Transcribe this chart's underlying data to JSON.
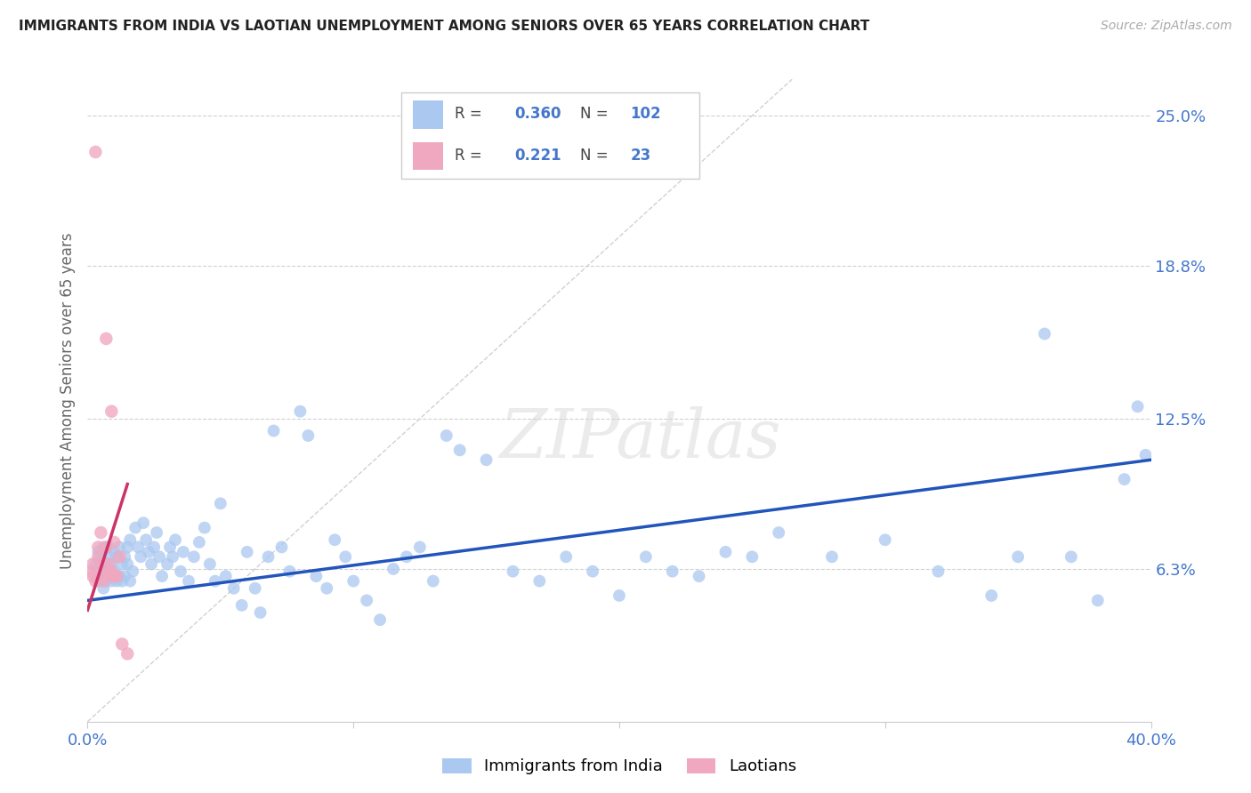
{
  "title": "IMMIGRANTS FROM INDIA VS LAOTIAN UNEMPLOYMENT AMONG SENIORS OVER 65 YEARS CORRELATION CHART",
  "source": "Source: ZipAtlas.com",
  "ylabel": "Unemployment Among Seniors over 65 years",
  "xlim": [
    0.0,
    0.4
  ],
  "ylim": [
    0.0,
    0.265
  ],
  "xticks": [
    0.0,
    0.1,
    0.2,
    0.3,
    0.4
  ],
  "xticklabels": [
    "0.0%",
    "",
    "",
    "",
    "40.0%"
  ],
  "ytick_positions": [
    0.0,
    0.063,
    0.125,
    0.188,
    0.25
  ],
  "ytick_labels": [
    "",
    "6.3%",
    "12.5%",
    "18.8%",
    "25.0%"
  ],
  "legend_r_india": "0.360",
  "legend_n_india": "102",
  "legend_r_laotian": "0.221",
  "legend_n_laotian": "23",
  "india_color": "#aac8f0",
  "laotian_color": "#f0a8c0",
  "india_line_color": "#2255bb",
  "laotian_line_color": "#cc3366",
  "diag_line_color": "#cccccc",
  "watermark": "ZIPatlas",
  "india_scatter_x": [
    0.003,
    0.004,
    0.004,
    0.005,
    0.005,
    0.006,
    0.006,
    0.007,
    0.007,
    0.007,
    0.008,
    0.008,
    0.008,
    0.009,
    0.009,
    0.01,
    0.01,
    0.011,
    0.011,
    0.012,
    0.012,
    0.013,
    0.013,
    0.014,
    0.014,
    0.015,
    0.015,
    0.016,
    0.016,
    0.017,
    0.018,
    0.019,
    0.02,
    0.021,
    0.022,
    0.023,
    0.024,
    0.025,
    0.026,
    0.027,
    0.028,
    0.03,
    0.031,
    0.032,
    0.033,
    0.035,
    0.036,
    0.038,
    0.04,
    0.042,
    0.044,
    0.046,
    0.048,
    0.05,
    0.052,
    0.055,
    0.058,
    0.06,
    0.063,
    0.065,
    0.068,
    0.07,
    0.073,
    0.076,
    0.08,
    0.083,
    0.086,
    0.09,
    0.093,
    0.097,
    0.1,
    0.105,
    0.11,
    0.115,
    0.12,
    0.125,
    0.13,
    0.135,
    0.14,
    0.15,
    0.16,
    0.17,
    0.18,
    0.19,
    0.2,
    0.21,
    0.22,
    0.23,
    0.24,
    0.25,
    0.26,
    0.28,
    0.3,
    0.32,
    0.34,
    0.35,
    0.36,
    0.37,
    0.38,
    0.39,
    0.395,
    0.398
  ],
  "india_scatter_y": [
    0.065,
    0.058,
    0.07,
    0.062,
    0.068,
    0.055,
    0.072,
    0.06,
    0.065,
    0.058,
    0.068,
    0.06,
    0.072,
    0.065,
    0.058,
    0.07,
    0.062,
    0.068,
    0.058,
    0.072,
    0.06,
    0.065,
    0.058,
    0.068,
    0.06,
    0.072,
    0.065,
    0.058,
    0.075,
    0.062,
    0.08,
    0.072,
    0.068,
    0.082,
    0.075,
    0.07,
    0.065,
    0.072,
    0.078,
    0.068,
    0.06,
    0.065,
    0.072,
    0.068,
    0.075,
    0.062,
    0.07,
    0.058,
    0.068,
    0.074,
    0.08,
    0.065,
    0.058,
    0.09,
    0.06,
    0.055,
    0.048,
    0.07,
    0.055,
    0.045,
    0.068,
    0.12,
    0.072,
    0.062,
    0.128,
    0.118,
    0.06,
    0.055,
    0.075,
    0.068,
    0.058,
    0.05,
    0.042,
    0.063,
    0.068,
    0.072,
    0.058,
    0.118,
    0.112,
    0.108,
    0.062,
    0.058,
    0.068,
    0.062,
    0.052,
    0.068,
    0.062,
    0.06,
    0.07,
    0.068,
    0.078,
    0.068,
    0.075,
    0.062,
    0.052,
    0.068,
    0.16,
    0.068,
    0.05,
    0.1,
    0.13,
    0.11
  ],
  "laotian_scatter_x": [
    0.001,
    0.002,
    0.002,
    0.003,
    0.003,
    0.004,
    0.004,
    0.005,
    0.005,
    0.006,
    0.006,
    0.007,
    0.007,
    0.008,
    0.008,
    0.009,
    0.009,
    0.01,
    0.01,
    0.011,
    0.012,
    0.013,
    0.015
  ],
  "laotian_scatter_y": [
    0.062,
    0.065,
    0.06,
    0.058,
    0.235,
    0.068,
    0.072,
    0.065,
    0.078,
    0.062,
    0.058,
    0.072,
    0.158,
    0.065,
    0.06,
    0.128,
    0.062,
    0.06,
    0.074,
    0.06,
    0.068,
    0.032,
    0.028
  ],
  "india_trend_x": [
    0.0,
    0.4
  ],
  "india_trend_y": [
    0.05,
    0.108
  ],
  "laotian_trend_x": [
    0.0,
    0.015
  ],
  "laotian_trend_y": [
    0.046,
    0.098
  ]
}
